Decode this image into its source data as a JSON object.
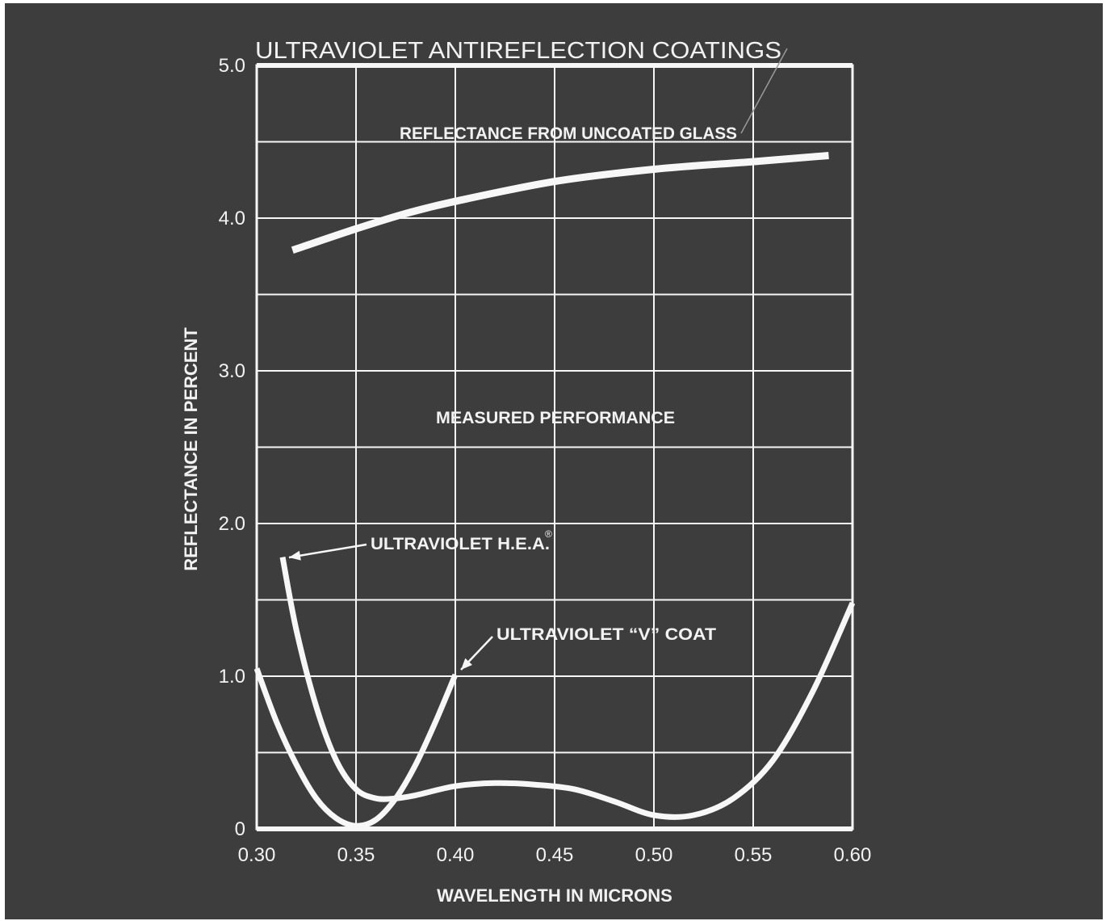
{
  "chart_data": {
    "type": "line",
    "title": "ULTRAVIOLET ANTIREFLECTION COATINGS",
    "xlabel": "WAVELENGTH IN MICRONS",
    "ylabel": "REFLECTANCE IN PERCENT",
    "xlim": [
      0.3,
      0.6
    ],
    "ylim": [
      0,
      5.0
    ],
    "x_ticks": [
      0.3,
      0.35,
      0.4,
      0.45,
      0.5,
      0.55,
      0.6
    ],
    "x_tick_labels": [
      "0.30",
      "0.35",
      "0.40",
      "0.45",
      "0.50",
      "0.55",
      "0.60"
    ],
    "y_ticks": [
      0,
      1.0,
      2.0,
      3.0,
      4.0,
      5.0
    ],
    "y_tick_labels": [
      "0",
      "1.0",
      "2.0",
      "3.0",
      "4.0",
      "5.0"
    ],
    "grid": true,
    "grid_step_x": 0.05,
    "grid_step_y": 0.5,
    "annotations": {
      "uncoated": "REFLECTANCE FROM UNCOATED GLASS",
      "measured": "MEASURED PERFORMANCE",
      "hea": "ULTRAVIOLET H.E.A.",
      "hea_mark": "®",
      "vcoat": "ULTRAVIOLET “V” COAT"
    },
    "series": [
      {
        "key": "uncoated",
        "x": [
          0.318,
          0.35,
          0.375,
          0.4,
          0.45,
          0.5,
          0.55,
          0.588
        ],
        "y": [
          3.79,
          3.93,
          4.03,
          4.11,
          4.24,
          4.32,
          4.37,
          4.41
        ]
      },
      {
        "key": "hea",
        "x": [
          0.313,
          0.32,
          0.33,
          0.34,
          0.35,
          0.36,
          0.37,
          0.38,
          0.4,
          0.42,
          0.44,
          0.46,
          0.48,
          0.5,
          0.52,
          0.54,
          0.56,
          0.58,
          0.6
        ],
        "y": [
          1.78,
          1.3,
          0.8,
          0.45,
          0.26,
          0.2,
          0.2,
          0.22,
          0.28,
          0.3,
          0.29,
          0.26,
          0.18,
          0.09,
          0.09,
          0.2,
          0.45,
          0.9,
          1.48
        ]
      },
      {
        "key": "vcoat",
        "x": [
          0.3,
          0.31,
          0.32,
          0.33,
          0.34,
          0.35,
          0.36,
          0.37,
          0.38,
          0.39,
          0.4
        ],
        "y": [
          1.05,
          0.7,
          0.42,
          0.2,
          0.07,
          0.02,
          0.06,
          0.2,
          0.42,
          0.7,
          1.01
        ]
      }
    ],
    "line_color": "#f7f7f7",
    "background_color": "#3d3d3d"
  }
}
